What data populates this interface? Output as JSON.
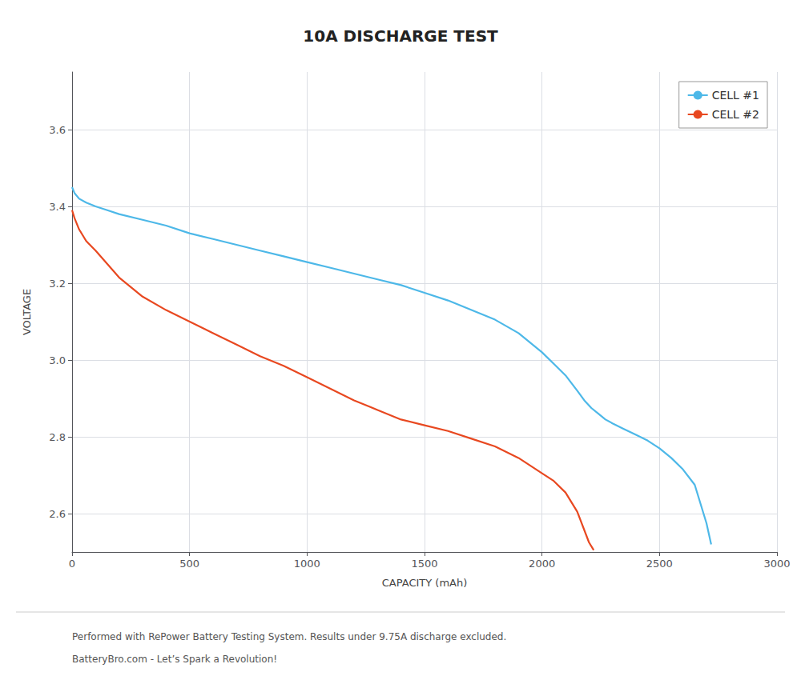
{
  "chart_data": {
    "type": "line",
    "title": "10A DISCHARGE TEST",
    "xlabel": "CAPACITY (mAh)",
    "ylabel": "VOLTAGE",
    "annotations": [
      "Performed with RePower Battery Testing System. Results under 9.75A discharge excluded.",
      "BatteryBro.com - Let’s Spark a Revolution!"
    ],
    "xlim": [
      0,
      3000
    ],
    "ylim": [
      2.5,
      3.75
    ],
    "xticks": [
      0,
      500,
      1000,
      1500,
      2000,
      2500,
      3000
    ],
    "yticks": [
      2.6,
      2.8,
      {
        "value": 3.0,
        "label": "3.0"
      },
      3.2,
      3.4,
      3.6
    ],
    "grid": true,
    "legend": "upper right",
    "series": [
      {
        "name": "CELL #1",
        "color": "#4db8e8",
        "x": [
          0,
          10,
          30,
          60,
          100,
          150,
          200,
          300,
          400,
          500,
          600,
          700,
          800,
          900,
          1000,
          1100,
          1200,
          1300,
          1400,
          1500,
          1600,
          1700,
          1800,
          1900,
          2000,
          2050,
          2100,
          2150,
          2180,
          2210,
          2240,
          2270,
          2300,
          2350,
          2400,
          2450,
          2500,
          2550,
          2600,
          2650,
          2700,
          2720
        ],
        "values": [
          3.45,
          3.435,
          3.42,
          3.41,
          3.4,
          3.39,
          3.38,
          3.365,
          3.35,
          3.33,
          3.315,
          3.3,
          3.285,
          3.27,
          3.255,
          3.24,
          3.225,
          3.21,
          3.195,
          3.175,
          3.155,
          3.13,
          3.105,
          3.07,
          3.02,
          2.99,
          2.96,
          2.92,
          2.895,
          2.875,
          2.86,
          2.845,
          2.835,
          2.82,
          2.805,
          2.79,
          2.77,
          2.745,
          2.715,
          2.675,
          2.575,
          2.52
        ]
      },
      {
        "name": "CELL #2",
        "color": "#e84820",
        "x": [
          0,
          10,
          30,
          60,
          100,
          150,
          200,
          250,
          300,
          400,
          500,
          600,
          700,
          800,
          900,
          1000,
          1100,
          1200,
          1300,
          1400,
          1500,
          1600,
          1700,
          1800,
          1900,
          2000,
          2050,
          2100,
          2150,
          2200,
          2220
        ],
        "values": [
          3.39,
          3.37,
          3.34,
          3.31,
          3.285,
          3.25,
          3.215,
          3.19,
          3.165,
          3.13,
          3.1,
          3.07,
          3.04,
          3.01,
          2.985,
          2.955,
          2.925,
          2.895,
          2.87,
          2.845,
          2.83,
          2.815,
          2.795,
          2.775,
          2.745,
          2.705,
          2.685,
          2.655,
          2.605,
          2.525,
          2.505
        ]
      }
    ]
  }
}
